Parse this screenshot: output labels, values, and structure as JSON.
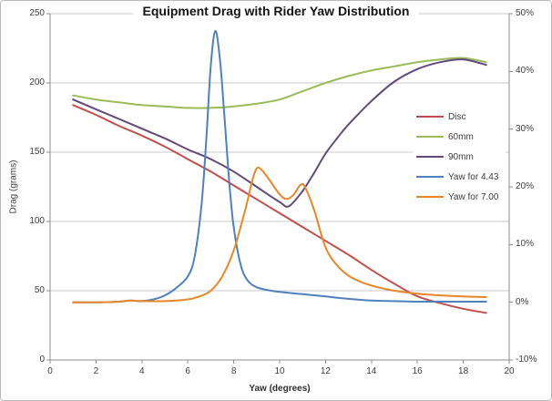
{
  "chart_data": {
    "type": "line",
    "title": "Equipment Drag with Rider Yaw Distribution",
    "xlabel": "Yaw (degrees)",
    "ylabel_left": "Drag (grams)",
    "grid": true,
    "legend_position": "middle-right",
    "colors": {
      "grid": "#C9C9C9",
      "axis": "#8C8C8C",
      "text": "#3C3C3C",
      "title": "#141414"
    },
    "x_axis": {
      "min": 0,
      "max": 20,
      "tick_step": 2,
      "ticks": [
        0,
        2,
        4,
        6,
        8,
        10,
        12,
        14,
        16,
        18,
        20
      ]
    },
    "y_left": {
      "min": 0,
      "max": 250,
      "tick_step": 50,
      "ticks": [
        0,
        50,
        100,
        150,
        200,
        250
      ]
    },
    "y_right": {
      "min": -10,
      "max": 50,
      "tick_step": 10,
      "ticks": [
        -10,
        0,
        10,
        20,
        30,
        40,
        50
      ],
      "tick_labels": [
        "-10%",
        "0%",
        "10%",
        "20%",
        "30%",
        "40%",
        "50%"
      ]
    },
    "series": [
      {
        "name": "Disc",
        "color": "#C0504D",
        "axis": "left",
        "points": [
          [
            1,
            184
          ],
          [
            2,
            177
          ],
          [
            3,
            169
          ],
          [
            4,
            162
          ],
          [
            5,
            154
          ],
          [
            6,
            145
          ],
          [
            7,
            136
          ],
          [
            8,
            126
          ],
          [
            9,
            116
          ],
          [
            10,
            106
          ],
          [
            11,
            96
          ],
          [
            12,
            86
          ],
          [
            13,
            76
          ],
          [
            14,
            65
          ],
          [
            15,
            55
          ],
          [
            16,
            46
          ],
          [
            17,
            41
          ],
          [
            18,
            37
          ],
          [
            19,
            34
          ]
        ]
      },
      {
        "name": "60mm",
        "color": "#9BBB59",
        "axis": "left",
        "points": [
          [
            1,
            191
          ],
          [
            2,
            188
          ],
          [
            3,
            186
          ],
          [
            4,
            184
          ],
          [
            5,
            183
          ],
          [
            6,
            182
          ],
          [
            7,
            182
          ],
          [
            8,
            183
          ],
          [
            9,
            185
          ],
          [
            10,
            188
          ],
          [
            11,
            194
          ],
          [
            12,
            200
          ],
          [
            13,
            205
          ],
          [
            14,
            209
          ],
          [
            15,
            212
          ],
          [
            16,
            215
          ],
          [
            17,
            217
          ],
          [
            18,
            218
          ],
          [
            19,
            215
          ]
        ]
      },
      {
        "name": "90mm",
        "color": "#62497B",
        "axis": "left",
        "points": [
          [
            1,
            188
          ],
          [
            2,
            181
          ],
          [
            3,
            174
          ],
          [
            4,
            167
          ],
          [
            5,
            160
          ],
          [
            6,
            152
          ],
          [
            7,
            145
          ],
          [
            8,
            136
          ],
          [
            9,
            125
          ],
          [
            10,
            114
          ],
          [
            10.4,
            111
          ],
          [
            11,
            122
          ],
          [
            11.5,
            135
          ],
          [
            12,
            149
          ],
          [
            12.5,
            160
          ],
          [
            13,
            170
          ],
          [
            14,
            187
          ],
          [
            15,
            201
          ],
          [
            16,
            210
          ],
          [
            17,
            215
          ],
          [
            18,
            217
          ],
          [
            19,
            213
          ]
        ]
      },
      {
        "name": "Yaw for 4.43",
        "color": "#4F81BD",
        "axis": "right",
        "points": [
          [
            1,
            0
          ],
          [
            2,
            0
          ],
          [
            3,
            0.1
          ],
          [
            3.5,
            0.3
          ],
          [
            4,
            0.2
          ],
          [
            4.5,
            0.5
          ],
          [
            5,
            1.2
          ],
          [
            5.5,
            2.5
          ],
          [
            6,
            4.5
          ],
          [
            6.3,
            8
          ],
          [
            6.6,
            17
          ],
          [
            6.8,
            28
          ],
          [
            7,
            41
          ],
          [
            7.2,
            47
          ],
          [
            7.4,
            42
          ],
          [
            7.6,
            32
          ],
          [
            7.8,
            21
          ],
          [
            8,
            13
          ],
          [
            8.3,
            6.5
          ],
          [
            8.6,
            3.8
          ],
          [
            9,
            2.6
          ],
          [
            9.5,
            2.1
          ],
          [
            10,
            1.8
          ],
          [
            11,
            1.4
          ],
          [
            12,
            1
          ],
          [
            13,
            0.6
          ],
          [
            14,
            0.3
          ],
          [
            15,
            0.2
          ],
          [
            16,
            0.1
          ],
          [
            17,
            0.1
          ],
          [
            18,
            0.1
          ],
          [
            19,
            0.1
          ]
        ]
      },
      {
        "name": "Yaw for 7.00",
        "color": "#E8872A",
        "axis": "right",
        "points": [
          [
            1,
            0
          ],
          [
            2,
            0
          ],
          [
            3,
            0.1
          ],
          [
            3.5,
            0.3
          ],
          [
            4,
            0.2
          ],
          [
            5,
            0.2
          ],
          [
            6,
            0.5
          ],
          [
            6.5,
            1
          ],
          [
            7,
            2
          ],
          [
            7.5,
            4.5
          ],
          [
            8,
            9
          ],
          [
            8.5,
            16
          ],
          [
            8.8,
            21
          ],
          [
            9,
            23.2
          ],
          [
            9.2,
            23
          ],
          [
            9.5,
            21.5
          ],
          [
            10,
            18.7
          ],
          [
            10.3,
            17.9
          ],
          [
            10.6,
            18.6
          ],
          [
            10.9,
            20.3
          ],
          [
            11.1,
            20
          ],
          [
            11.5,
            16
          ],
          [
            12,
            9.5
          ],
          [
            12.5,
            6.4
          ],
          [
            13,
            4.6
          ],
          [
            13.5,
            3.6
          ],
          [
            14,
            2.9
          ],
          [
            14.5,
            2.4
          ],
          [
            15,
            2
          ],
          [
            16,
            1.5
          ],
          [
            17,
            1.2
          ],
          [
            18,
            1
          ],
          [
            19,
            0.9
          ]
        ]
      }
    ]
  }
}
